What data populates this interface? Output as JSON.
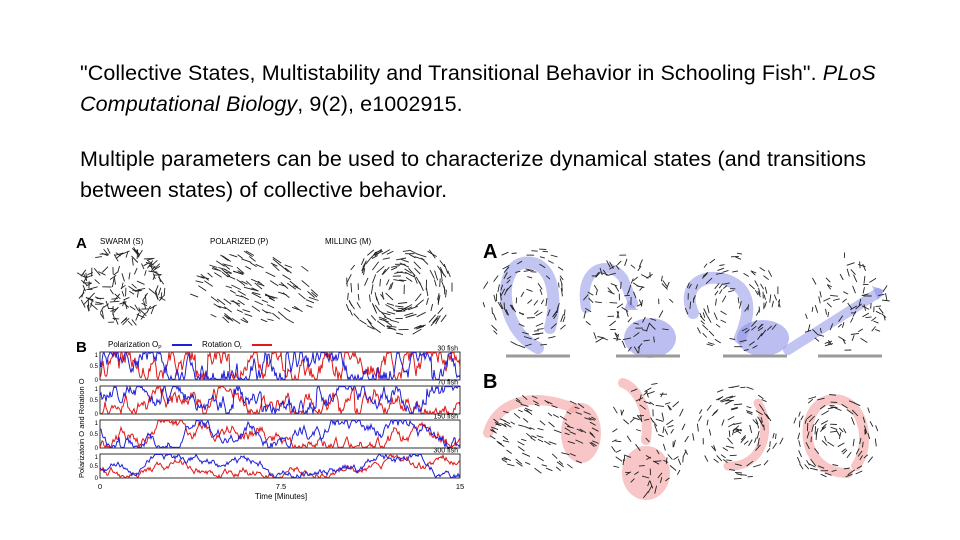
{
  "citation": {
    "title": "\"Collective States, Multistability and Transitional Behavior in Schooling Fish\".",
    "journal": "PLoS Computational Biology",
    "rest": ", 9(2), e1002915."
  },
  "summary": "Multiple parameters can be used to characterize dynamical states (and transitions between states) of collective behavior.",
  "figure_left": {
    "panel_a_label": "A",
    "states": [
      "SWARM (S)",
      "POLARIZED (P)",
      "MILLING (M)"
    ],
    "panel_b_label": "B",
    "legend": {
      "polarization": "Polarization O",
      "polarization_sub": "P",
      "rotation": "Rotation O",
      "rotation_sub": "r"
    },
    "ylabel": "Polarizatoin O  and Rotation O",
    "xlabel": "Time [Minutes]",
    "xticks": [
      "0",
      "7.5",
      "15"
    ],
    "yticks": [
      "1",
      "0.5",
      "0"
    ],
    "tracks": [
      "30 fish",
      "70 fish",
      "150 fish",
      "300 fish"
    ],
    "colors": {
      "polarization": "#1f1fd6",
      "rotation": "#e01818"
    }
  },
  "figure_right": {
    "panel_a_label": "A",
    "panel_b_label": "B",
    "colors": {
      "a": "#8f93e8",
      "b": "#f3a0a0"
    }
  }
}
